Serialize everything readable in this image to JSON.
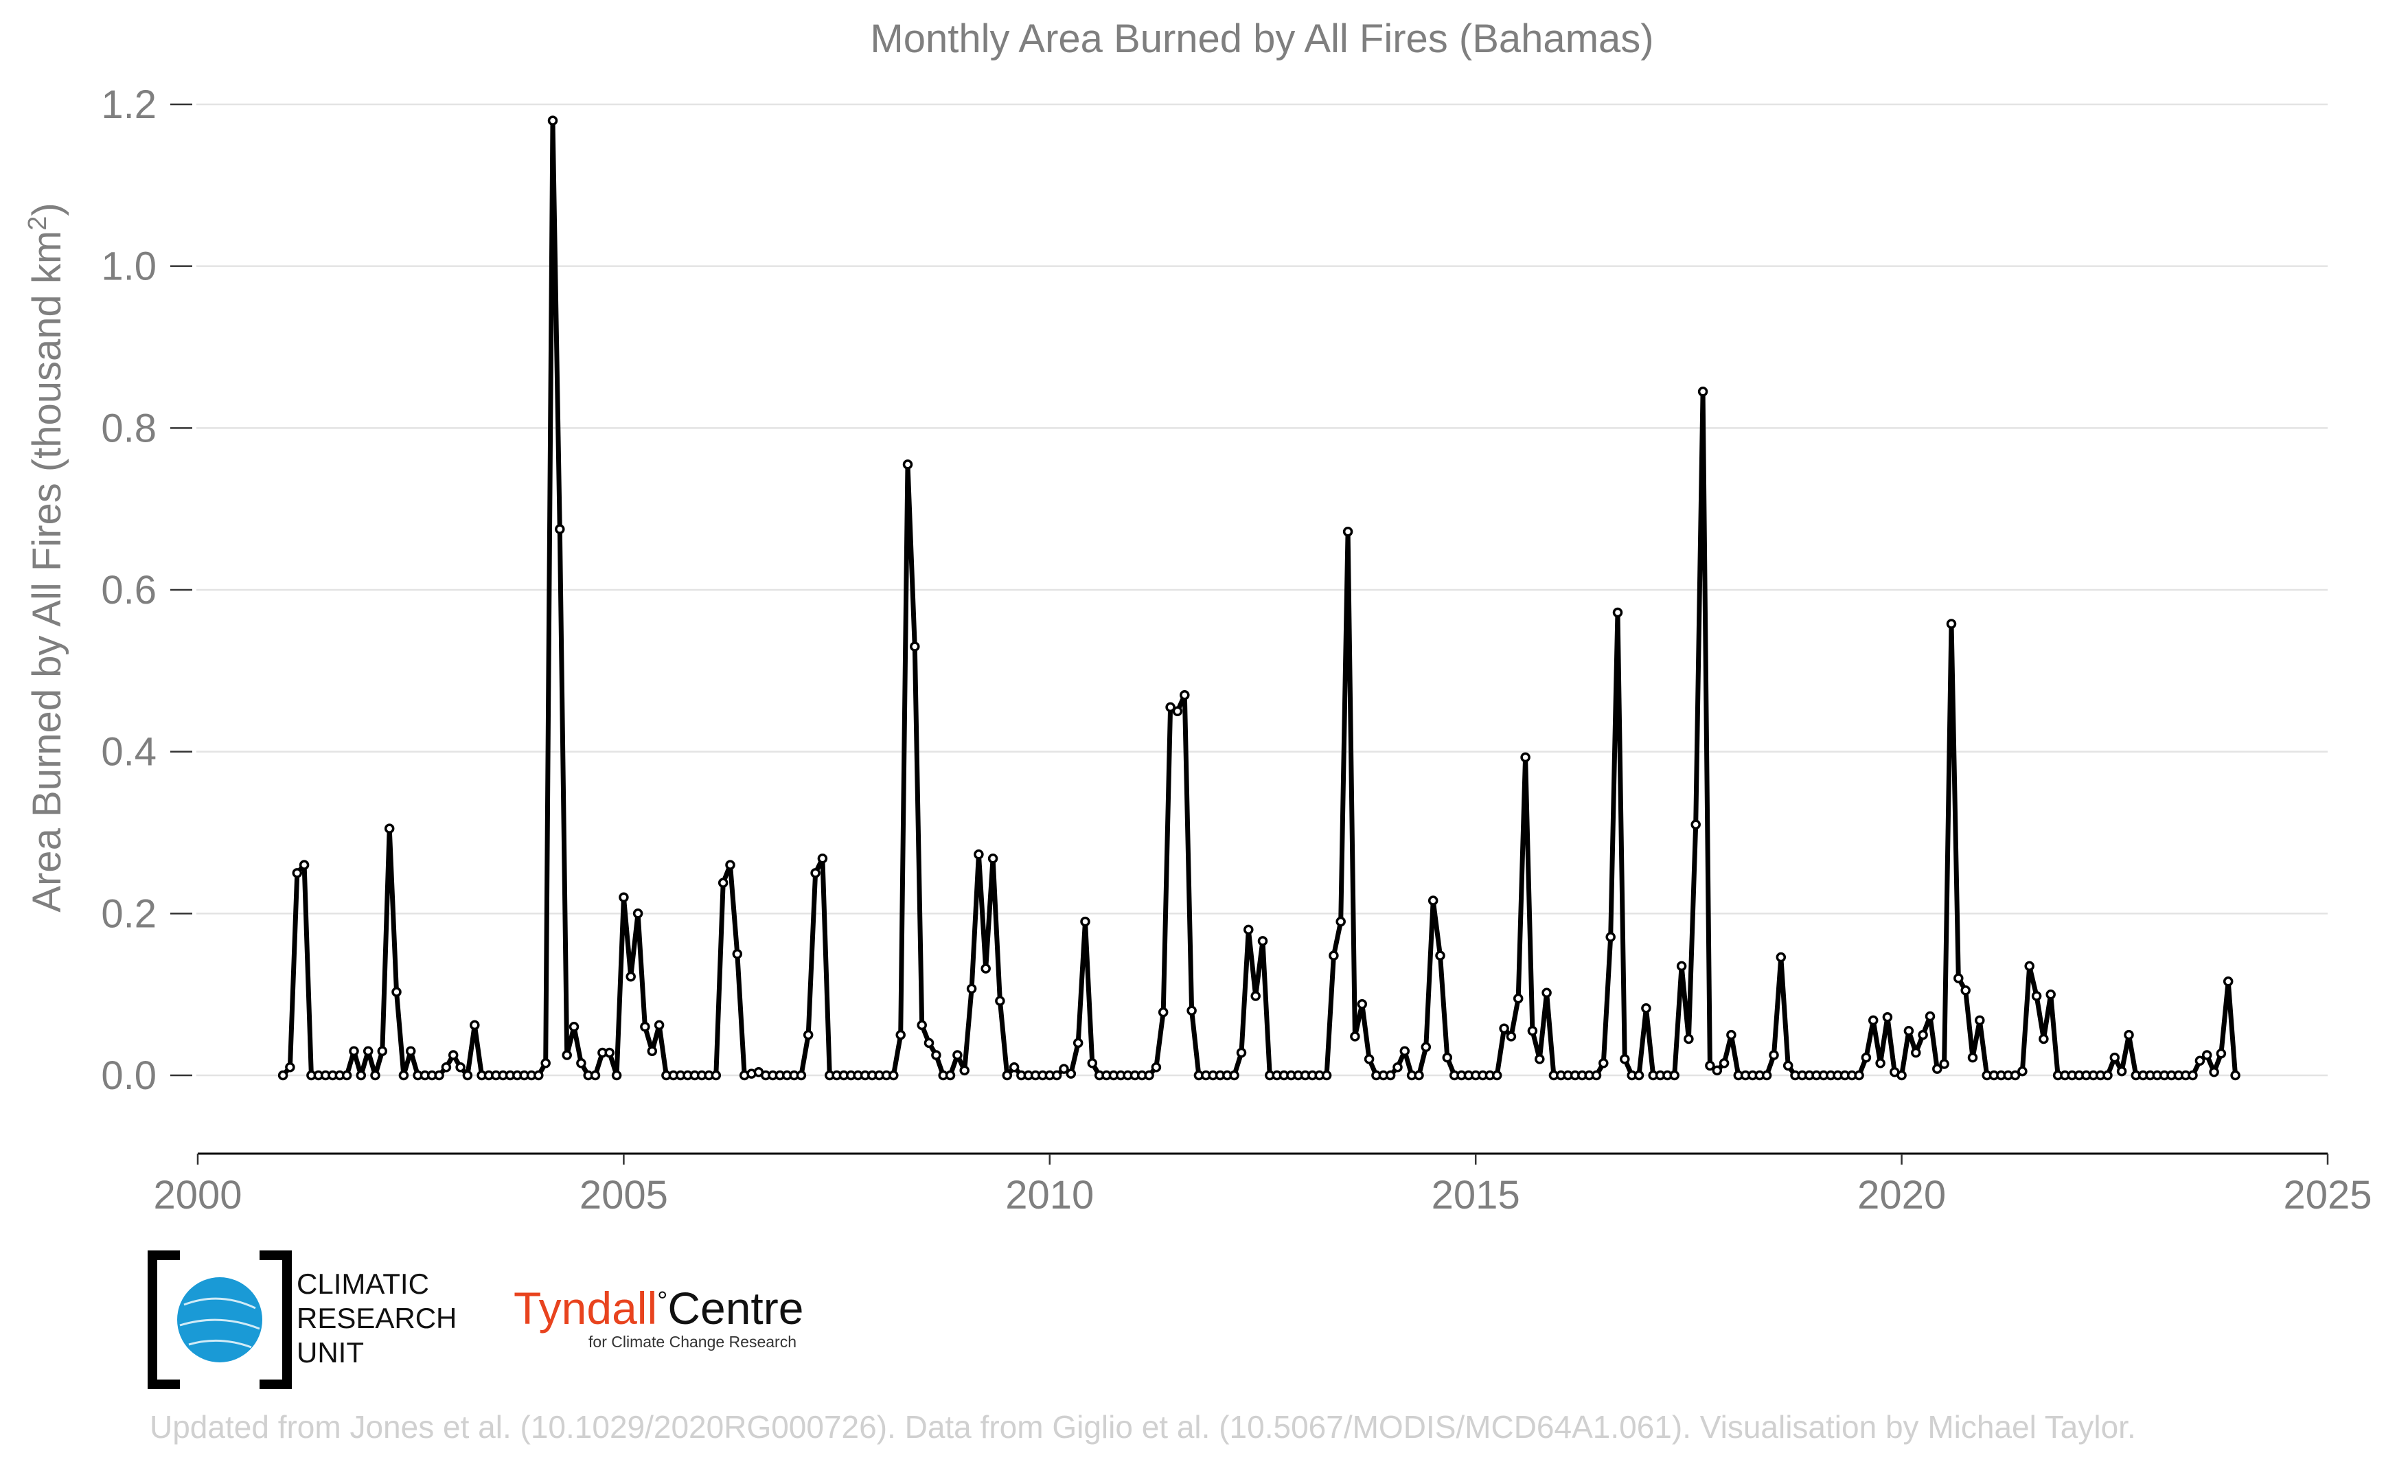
{
  "chart_data": {
    "type": "line",
    "title": "Monthly Area Burned by All Fires (Bahamas)",
    "ylabel": "Area Burned by All Fires (thousand km",
    "ylabel_sup": "2",
    "ylabel_end": ")",
    "xlabel": "",
    "xlim": [
      2000,
      2025
    ],
    "ylim": [
      -0.1,
      1.2
    ],
    "x_ticks": [
      2000,
      2005,
      2010,
      2015,
      2020,
      2025
    ],
    "x_tick_labels": [
      "2000",
      "2005",
      "2010",
      "2015",
      "2020",
      "2025"
    ],
    "y_ticks": [
      0.0,
      0.2,
      0.4,
      0.6,
      0.8,
      1.0,
      1.2
    ],
    "y_tick_labels": [
      "0.0",
      "0.2",
      "0.4",
      "0.6",
      "0.8",
      "1.0",
      "1.2"
    ],
    "grid": "horizontal",
    "series_color": "#000000",
    "series": [
      {
        "start": "2001-01",
        "frequency": "monthly",
        "values": [
          0.0,
          0.01,
          0.25,
          0.26,
          0.0,
          0.0,
          0.0,
          0.0,
          0.0,
          0.0,
          0.03,
          0.0,
          0.03,
          0.0,
          0.03,
          0.305,
          0.103,
          0.0,
          0.03,
          0.0,
          0.0,
          0.0,
          0.0,
          0.01,
          0.025,
          0.01,
          0.0,
          0.062,
          0.0,
          0.0,
          0.0,
          0.0,
          0.0,
          0.0,
          0.0,
          0.0,
          0.0,
          0.015,
          1.18,
          0.675,
          0.025,
          0.06,
          0.015,
          0.0,
          0.0,
          0.028,
          0.028,
          0.0,
          0.22,
          0.122,
          0.2,
          0.06,
          0.03,
          0.062,
          0.0,
          0.0,
          0.0,
          0.0,
          0.0,
          0.0,
          0.0,
          0.0,
          0.238,
          0.26,
          0.15,
          0.0,
          0.002,
          0.004,
          0.0,
          0.0,
          0.0,
          0.0,
          0.0,
          0.0,
          0.05,
          0.25,
          0.268,
          0.0,
          0.0,
          0.0,
          0.0,
          0.0,
          0.0,
          0.0,
          0.0,
          0.0,
          0.0,
          0.05,
          0.755,
          0.53,
          0.062,
          0.04,
          0.025,
          0.0,
          0.0,
          0.025,
          0.006,
          0.107,
          0.273,
          0.132,
          0.268,
          0.092,
          0.0,
          0.01,
          0.0,
          0.0,
          0.0,
          0.0,
          0.0,
          0.0,
          0.008,
          0.002,
          0.04,
          0.19,
          0.015,
          0.0,
          0.0,
          0.0,
          0.0,
          0.0,
          0.0,
          0.0,
          0.0,
          0.01,
          0.078,
          0.455,
          0.45,
          0.47,
          0.08,
          0.0,
          0.0,
          0.0,
          0.0,
          0.0,
          0.0,
          0.028,
          0.18,
          0.098,
          0.166,
          0.0,
          0.0,
          0.0,
          0.0,
          0.0,
          0.0,
          0.0,
          0.0,
          0.0,
          0.148,
          0.19,
          0.672,
          0.048,
          0.088,
          0.02,
          0.0,
          0.0,
          0.0,
          0.01,
          0.03,
          0.0,
          0.0,
          0.035,
          0.216,
          0.148,
          0.022,
          0.0,
          0.0,
          0.0,
          0.0,
          0.0,
          0.0,
          0.0,
          0.058,
          0.048,
          0.095,
          0.393,
          0.055,
          0.02,
          0.102,
          0.0,
          0.0,
          0.0,
          0.0,
          0.0,
          0.0,
          0.0,
          0.015,
          0.171,
          0.572,
          0.02,
          0.0,
          0.0,
          0.083,
          0.0,
          0.0,
          0.0,
          0.0,
          0.135,
          0.045,
          0.31,
          0.845,
          0.012,
          0.006,
          0.015,
          0.05,
          0.0,
          0.0,
          0.0,
          0.0,
          0.0,
          0.025,
          0.146,
          0.012,
          0.0,
          0.0,
          0.0,
          0.0,
          0.0,
          0.0,
          0.0,
          0.0,
          0.0,
          0.0,
          0.022,
          0.068,
          0.015,
          0.072,
          0.004,
          0.0,
          0.055,
          0.028,
          0.05,
          0.073,
          0.008,
          0.014,
          0.558,
          0.12,
          0.105,
          0.022,
          0.068,
          0.0,
          0.0,
          0.0,
          0.0,
          0.0,
          0.005,
          0.135,
          0.098,
          0.045,
          0.1,
          0.0,
          0.0,
          0.0,
          0.0,
          0.0,
          0.0,
          0.0,
          0.0,
          0.022,
          0.005,
          0.05,
          0.0,
          0.0,
          0.0,
          0.0,
          0.0,
          0.0,
          0.0,
          0.0,
          0.0,
          0.018,
          0.025,
          0.004,
          0.027,
          0.116,
          0.0
        ]
      }
    ]
  },
  "logos": {
    "cru_lines": [
      "CLIMATIC",
      "RESEARCH",
      "UNIT"
    ],
    "tyndall_name": "Tyndall",
    "tyndall_degree": "°",
    "tyndall_centre": "Centre",
    "tyndall_sub": "for Climate Change Research",
    "tyndall_color": "#e8431e",
    "cru_globe_color": "#1a9ad6"
  },
  "credit": "Updated from Jones et al. (10.1029/2020RG000726). Data from Giglio et al. (10.5067/MODIS/MCD64A1.061). Visualisation by Michael Taylor."
}
